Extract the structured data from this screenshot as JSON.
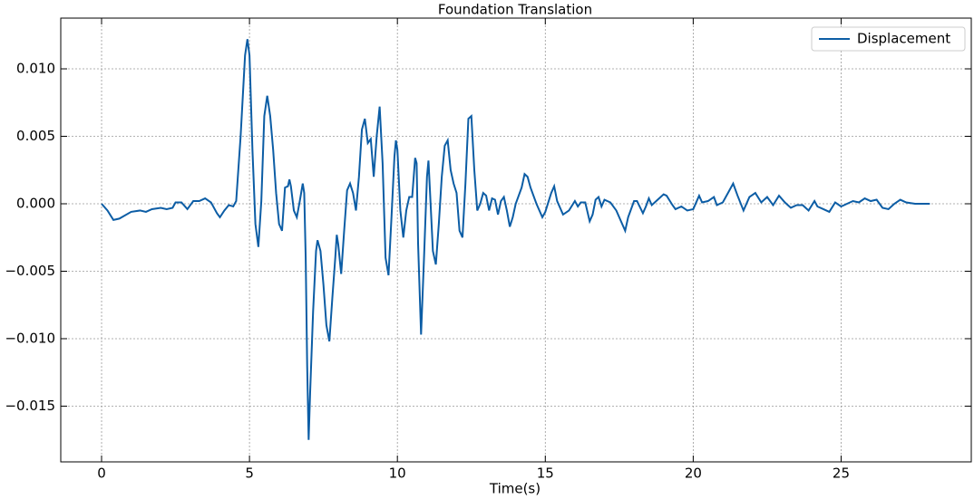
{
  "chart_data": {
    "type": "line",
    "title": "Foundation Translation",
    "x_label": "Time(s)",
    "x": [
      0,
      0.2,
      0.4,
      0.6,
      1.0,
      1.3,
      1.5,
      1.7,
      2.0,
      2.2,
      2.4,
      2.5,
      2.7,
      2.9,
      3.1,
      3.3,
      3.5,
      3.7,
      3.9,
      4.0,
      4.15,
      4.3,
      4.45,
      4.55,
      4.7,
      4.85,
      4.93,
      5.0,
      5.1,
      5.2,
      5.3,
      5.4,
      5.5,
      5.6,
      5.7,
      5.8,
      5.9,
      6.0,
      6.1,
      6.2,
      6.3,
      6.35,
      6.4,
      6.5,
      6.6,
      6.7,
      6.8,
      6.85,
      6.9,
      6.95,
      7.0,
      7.05,
      7.15,
      7.25,
      7.3,
      7.4,
      7.5,
      7.6,
      7.7,
      7.8,
      7.9,
      7.95,
      8.0,
      8.1,
      8.2,
      8.3,
      8.4,
      8.5,
      8.6,
      8.7,
      8.8,
      8.9,
      9.0,
      9.1,
      9.2,
      9.3,
      9.4,
      9.5,
      9.6,
      9.7,
      9.8,
      9.9,
      9.95,
      10.0,
      10.1,
      10.2,
      10.3,
      10.4,
      10.5,
      10.6,
      10.65,
      10.7,
      10.8,
      10.9,
      11.0,
      11.05,
      11.1,
      11.2,
      11.3,
      11.4,
      11.5,
      11.6,
      11.7,
      11.8,
      11.9,
      12.0,
      12.1,
      12.2,
      12.3,
      12.4,
      12.5,
      12.6,
      12.7,
      12.8,
      12.9,
      13.0,
      13.1,
      13.2,
      13.3,
      13.4,
      13.5,
      13.6,
      13.7,
      13.8,
      13.9,
      14.0,
      14.2,
      14.3,
      14.4,
      14.5,
      14.7,
      14.9,
      15.0,
      15.2,
      15.3,
      15.4,
      15.6,
      15.8,
      16.0,
      16.1,
      16.2,
      16.35,
      16.5,
      16.6,
      16.7,
      16.8,
      16.9,
      17.0,
      17.2,
      17.4,
      17.6,
      17.7,
      17.8,
      18.0,
      18.1,
      18.3,
      18.4,
      18.5,
      18.6,
      18.8,
      19.0,
      19.1,
      19.3,
      19.4,
      19.6,
      19.8,
      20.0,
      20.2,
      20.3,
      20.5,
      20.7,
      20.8,
      21.0,
      21.2,
      21.35,
      21.5,
      21.7,
      21.9,
      22.1,
      22.3,
      22.5,
      22.7,
      22.9,
      23.1,
      23.3,
      23.5,
      23.7,
      23.9,
      24.1,
      24.2,
      24.4,
      24.6,
      24.8,
      25.0,
      25.2,
      25.4,
      25.6,
      25.8,
      26.0,
      26.2,
      26.4,
      26.6,
      26.8,
      27.0,
      27.2,
      27.5,
      28.0
    ],
    "series": [
      {
        "name": "Displacement",
        "color": "#0c5da5",
        "values": [
          0,
          -0.0005,
          -0.0012,
          -0.0011,
          -0.0006,
          -0.0005,
          -0.0006,
          -0.0004,
          -0.0003,
          -0.0004,
          -0.0003,
          0.0001,
          0.0001,
          -0.0004,
          0.0002,
          0.0002,
          0.0004,
          0.0001,
          -0.0007,
          -0.001,
          -0.0005,
          -0.0001,
          -0.0002,
          0.0002,
          0.005,
          0.011,
          0.0122,
          0.011,
          0.004,
          -0.0015,
          -0.0032,
          0.0002,
          0.0065,
          0.008,
          0.0065,
          0.004,
          0.0008,
          -0.0015,
          -0.002,
          0.0012,
          0.0013,
          0.0018,
          0.0013,
          -0.0005,
          -0.001,
          0.0002,
          0.0015,
          0.0008,
          -0.004,
          -0.012,
          -0.0175,
          -0.014,
          -0.008,
          -0.0035,
          -0.0027,
          -0.0035,
          -0.006,
          -0.009,
          -0.0102,
          -0.007,
          -0.004,
          -0.0023,
          -0.003,
          -0.0052,
          -0.002,
          0.001,
          0.0015,
          0.0008,
          -0.0005,
          0.002,
          0.0055,
          0.0063,
          0.0045,
          0.0048,
          0.002,
          0.005,
          0.0072,
          0.003,
          -0.004,
          -0.0053,
          -0.001,
          0.0035,
          0.0047,
          0.004,
          -0.0005,
          -0.0025,
          -0.0005,
          0.0005,
          0.0005,
          0.0034,
          0.003,
          -0.003,
          -0.0097,
          -0.004,
          0.002,
          0.0032,
          0.001,
          -0.0035,
          -0.0045,
          -0.0015,
          0.002,
          0.0043,
          0.0047,
          0.0025,
          0.0015,
          0.0008,
          -0.002,
          -0.0025,
          0.0015,
          0.0063,
          0.0065,
          0.0025,
          -0.0005,
          0,
          0.0008,
          0.0006,
          -0.0005,
          0.0004,
          0.0003,
          -0.0008,
          0.0002,
          0.0005,
          -0.0005,
          -0.0017,
          -0.001,
          0,
          0.0012,
          0.0022,
          0.002,
          0.0012,
          0,
          -0.001,
          -0.0006,
          0.0008,
          0.0013,
          0.0002,
          -0.0008,
          -0.0005,
          0.0002,
          -0.0002,
          0.0001,
          0.0001,
          -0.0013,
          -0.0008,
          0.0003,
          0.0005,
          -0.0002,
          0.0003,
          0.0001,
          -0.0005,
          -0.0015,
          -0.002,
          -0.001,
          0.0002,
          0.0002,
          -0.0007,
          -0.0002,
          0.0004,
          -0.0001,
          0.0003,
          0.0007,
          0.0006,
          -0.0001,
          -0.0004,
          -0.0002,
          -0.0005,
          -0.0004,
          0.0006,
          0.0001,
          0.0002,
          0.0005,
          -0.0001,
          0.0001,
          0.0009,
          0.0015,
          0.0006,
          -0.0005,
          0.0005,
          0.0008,
          0.0001,
          0.0005,
          -0.0001,
          0.0006,
          0.0001,
          -0.0003,
          -0.0001,
          -0.0001,
          -0.0005,
          0.0002,
          -0.0002,
          -0.0004,
          -0.0006,
          0.0001,
          -0.0002,
          0,
          0.0002,
          0.0001,
          0.0004,
          0.0002,
          0.0003,
          -0.0003,
          -0.0004,
          0,
          0.0003,
          0.0001,
          0,
          0
        ]
      }
    ],
    "xlim": [
      -1.38,
      29.4
    ],
    "ylim": [
      -0.01913,
      0.01376
    ],
    "xticks": [
      0,
      5,
      10,
      15,
      20,
      25
    ],
    "yticks": [
      {
        "value": -0.015,
        "label": "−0.015"
      },
      {
        "value": -0.01,
        "label": "−0.010"
      },
      {
        "value": -0.005,
        "label": "−0.005"
      },
      {
        "value": 0,
        "label": "0.000"
      },
      {
        "value": 0.005,
        "label": "0.005"
      },
      {
        "value": 0.01,
        "label": "0.010"
      }
    ],
    "grid": true,
    "legend": "upper right"
  }
}
